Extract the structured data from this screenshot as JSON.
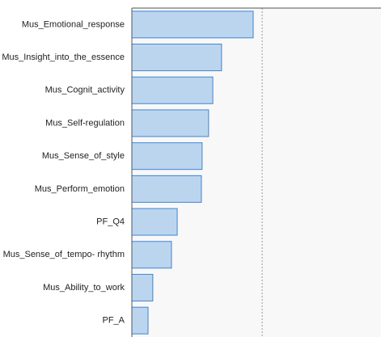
{
  "chart_data": {
    "type": "barh",
    "categories": [
      "Mus_Emotional_response",
      "Mus_Insight_into_the_essence",
      "Mus_Cognit_activity",
      "Mus_Self-regulation",
      "Mus_Sense_of_style",
      "Mus_Perform_emotion",
      "PF_Q4",
      "Mus_Sense_of_tempo- rhythm",
      "Mus_Ability_to_work",
      "PF_A"
    ],
    "values": [
      0.487,
      0.36,
      0.325,
      0.308,
      0.282,
      0.279,
      0.182,
      0.159,
      0.084,
      0.065
    ],
    "color": "#bcd5ee",
    "edge_color": "#3d85d4",
    "xlim": [
      0,
      1
    ],
    "reference_line": 0.523
  }
}
